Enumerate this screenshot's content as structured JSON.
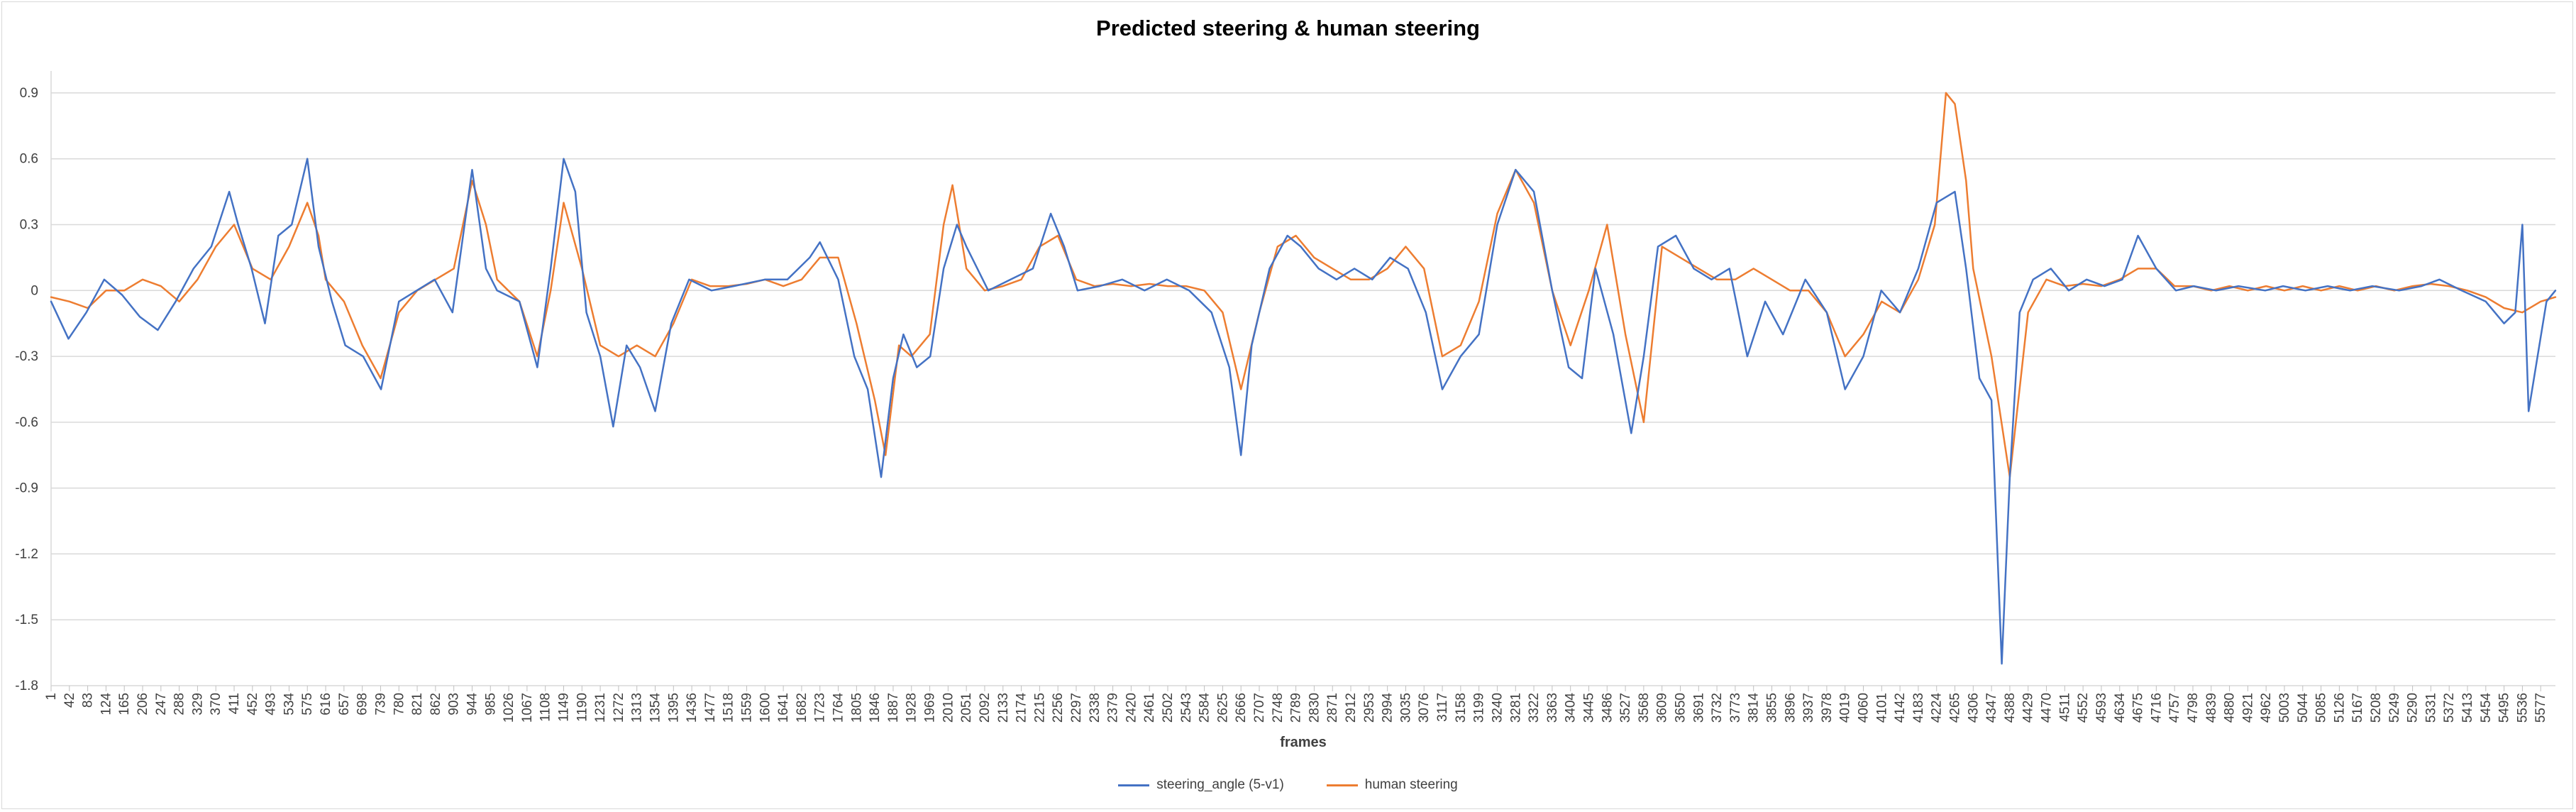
{
  "chart_data": {
    "type": "line",
    "title": "Predicted steering & human steering",
    "xlabel": "frames",
    "ylabel": "",
    "ylim": [
      -1.8,
      1.0
    ],
    "yticks": [
      -1.8,
      -1.5,
      -1.2,
      -0.9,
      -0.6,
      -0.3,
      0,
      0.3,
      0.6,
      0.9
    ],
    "xlim": [
      1,
      5610
    ],
    "xtick_start": 1,
    "xtick_step": 41,
    "grid": "horizontal",
    "legend_position": "bottom",
    "series": [
      {
        "name": "steering_angle (5-v1)",
        "color": "#4472C4",
        "points": [
          [
            1,
            -0.05
          ],
          [
            40,
            -0.22
          ],
          [
            80,
            -0.1
          ],
          [
            120,
            0.05
          ],
          [
            160,
            -0.02
          ],
          [
            200,
            -0.12
          ],
          [
            240,
            -0.18
          ],
          [
            280,
            -0.05
          ],
          [
            320,
            0.1
          ],
          [
            360,
            0.2
          ],
          [
            400,
            0.45
          ],
          [
            420,
            0.3
          ],
          [
            450,
            0.1
          ],
          [
            480,
            -0.15
          ],
          [
            510,
            0.25
          ],
          [
            540,
            0.3
          ],
          [
            575,
            0.6
          ],
          [
            600,
            0.2
          ],
          [
            630,
            -0.05
          ],
          [
            660,
            -0.25
          ],
          [
            700,
            -0.3
          ],
          [
            740,
            -0.45
          ],
          [
            780,
            -0.05
          ],
          [
            820,
            0.0
          ],
          [
            860,
            0.05
          ],
          [
            900,
            -0.1
          ],
          [
            944,
            0.55
          ],
          [
            975,
            0.1
          ],
          [
            1000,
            0.0
          ],
          [
            1050,
            -0.05
          ],
          [
            1090,
            -0.35
          ],
          [
            1120,
            0.1
          ],
          [
            1149,
            0.6
          ],
          [
            1175,
            0.45
          ],
          [
            1200,
            -0.1
          ],
          [
            1231,
            -0.3
          ],
          [
            1260,
            -0.62
          ],
          [
            1290,
            -0.25
          ],
          [
            1320,
            -0.35
          ],
          [
            1354,
            -0.55
          ],
          [
            1390,
            -0.15
          ],
          [
            1430,
            0.05
          ],
          [
            1480,
            0.0
          ],
          [
            1530,
            0.02
          ],
          [
            1600,
            0.05
          ],
          [
            1650,
            0.05
          ],
          [
            1700,
            0.15
          ],
          [
            1723,
            0.22
          ],
          [
            1764,
            0.05
          ],
          [
            1800,
            -0.3
          ],
          [
            1830,
            -0.45
          ],
          [
            1860,
            -0.85
          ],
          [
            1887,
            -0.4
          ],
          [
            1910,
            -0.2
          ],
          [
            1940,
            -0.35
          ],
          [
            1970,
            -0.3
          ],
          [
            2000,
            0.1
          ],
          [
            2030,
            0.3
          ],
          [
            2051,
            0.2
          ],
          [
            2100,
            0.0
          ],
          [
            2150,
            0.05
          ],
          [
            2200,
            0.1
          ],
          [
            2240,
            0.35
          ],
          [
            2270,
            0.2
          ],
          [
            2300,
            0.0
          ],
          [
            2350,
            0.02
          ],
          [
            2400,
            0.05
          ],
          [
            2450,
            0.0
          ],
          [
            2500,
            0.05
          ],
          [
            2550,
            0.0
          ],
          [
            2600,
            -0.1
          ],
          [
            2640,
            -0.35
          ],
          [
            2666,
            -0.75
          ],
          [
            2690,
            -0.25
          ],
          [
            2730,
            0.1
          ],
          [
            2770,
            0.25
          ],
          [
            2800,
            0.2
          ],
          [
            2840,
            0.1
          ],
          [
            2880,
            0.05
          ],
          [
            2920,
            0.1
          ],
          [
            2960,
            0.05
          ],
          [
            3000,
            0.15
          ],
          [
            3040,
            0.1
          ],
          [
            3080,
            -0.1
          ],
          [
            3117,
            -0.45
          ],
          [
            3158,
            -0.3
          ],
          [
            3199,
            -0.2
          ],
          [
            3240,
            0.3
          ],
          [
            3281,
            0.55
          ],
          [
            3322,
            0.45
          ],
          [
            3363,
            0.0
          ],
          [
            3400,
            -0.35
          ],
          [
            3430,
            -0.4
          ],
          [
            3460,
            0.1
          ],
          [
            3500,
            -0.2
          ],
          [
            3540,
            -0.65
          ],
          [
            3568,
            -0.3
          ],
          [
            3600,
            0.2
          ],
          [
            3640,
            0.25
          ],
          [
            3680,
            0.1
          ],
          [
            3720,
            0.05
          ],
          [
            3760,
            0.1
          ],
          [
            3800,
            -0.3
          ],
          [
            3840,
            -0.05
          ],
          [
            3880,
            -0.2
          ],
          [
            3930,
            0.05
          ],
          [
            3978,
            -0.1
          ],
          [
            4019,
            -0.45
          ],
          [
            4060,
            -0.3
          ],
          [
            4100,
            0.0
          ],
          [
            4142,
            -0.1
          ],
          [
            4183,
            0.1
          ],
          [
            4224,
            0.4
          ],
          [
            4265,
            0.45
          ],
          [
            4290,
            0.1
          ],
          [
            4320,
            -0.4
          ],
          [
            4347,
            -0.5
          ],
          [
            4370,
            -1.7
          ],
          [
            4388,
            -0.85
          ],
          [
            4410,
            -0.1
          ],
          [
            4440,
            0.05
          ],
          [
            4480,
            0.1
          ],
          [
            4520,
            0.0
          ],
          [
            4560,
            0.05
          ],
          [
            4600,
            0.02
          ],
          [
            4640,
            0.05
          ],
          [
            4675,
            0.25
          ],
          [
            4716,
            0.1
          ],
          [
            4760,
            0.0
          ],
          [
            4800,
            0.02
          ],
          [
            4850,
            0.0
          ],
          [
            4900,
            0.02
          ],
          [
            4960,
            0.0
          ],
          [
            5000,
            0.02
          ],
          [
            5050,
            0.0
          ],
          [
            5100,
            0.02
          ],
          [
            5150,
            0.0
          ],
          [
            5200,
            0.02
          ],
          [
            5260,
            0.0
          ],
          [
            5310,
            0.02
          ],
          [
            5350,
            0.05
          ],
          [
            5400,
            0.0
          ],
          [
            5454,
            -0.05
          ],
          [
            5495,
            -0.15
          ],
          [
            5520,
            -0.1
          ],
          [
            5536,
            0.3
          ],
          [
            5550,
            -0.55
          ],
          [
            5570,
            -0.3
          ],
          [
            5590,
            -0.05
          ],
          [
            5610,
            0.0
          ]
        ]
      },
      {
        "name": "human steering",
        "color": "#ED7D31",
        "points": [
          [
            1,
            -0.03
          ],
          [
            42,
            -0.05
          ],
          [
            83,
            -0.08
          ],
          [
            124,
            0.0
          ],
          [
            165,
            0.0
          ],
          [
            206,
            0.05
          ],
          [
            247,
            0.02
          ],
          [
            288,
            -0.05
          ],
          [
            329,
            0.05
          ],
          [
            370,
            0.2
          ],
          [
            411,
            0.3
          ],
          [
            452,
            0.1
          ],
          [
            493,
            0.05
          ],
          [
            534,
            0.2
          ],
          [
            575,
            0.4
          ],
          [
            600,
            0.25
          ],
          [
            616,
            0.05
          ],
          [
            657,
            -0.05
          ],
          [
            698,
            -0.25
          ],
          [
            739,
            -0.4
          ],
          [
            780,
            -0.1
          ],
          [
            821,
            0.0
          ],
          [
            862,
            0.05
          ],
          [
            903,
            0.1
          ],
          [
            944,
            0.5
          ],
          [
            975,
            0.3
          ],
          [
            1000,
            0.05
          ],
          [
            1050,
            -0.05
          ],
          [
            1090,
            -0.3
          ],
          [
            1120,
            0.0
          ],
          [
            1149,
            0.4
          ],
          [
            1190,
            0.1
          ],
          [
            1231,
            -0.25
          ],
          [
            1272,
            -0.3
          ],
          [
            1313,
            -0.25
          ],
          [
            1354,
            -0.3
          ],
          [
            1395,
            -0.15
          ],
          [
            1436,
            0.05
          ],
          [
            1477,
            0.02
          ],
          [
            1518,
            0.02
          ],
          [
            1559,
            0.03
          ],
          [
            1600,
            0.05
          ],
          [
            1641,
            0.02
          ],
          [
            1682,
            0.05
          ],
          [
            1723,
            0.15
          ],
          [
            1764,
            0.15
          ],
          [
            1805,
            -0.15
          ],
          [
            1846,
            -0.5
          ],
          [
            1870,
            -0.75
          ],
          [
            1900,
            -0.25
          ],
          [
            1928,
            -0.3
          ],
          [
            1969,
            -0.2
          ],
          [
            2000,
            0.3
          ],
          [
            2020,
            0.48
          ],
          [
            2051,
            0.1
          ],
          [
            2092,
            0.0
          ],
          [
            2133,
            0.02
          ],
          [
            2174,
            0.05
          ],
          [
            2215,
            0.2
          ],
          [
            2256,
            0.25
          ],
          [
            2297,
            0.05
          ],
          [
            2338,
            0.02
          ],
          [
            2379,
            0.03
          ],
          [
            2420,
            0.02
          ],
          [
            2461,
            0.03
          ],
          [
            2502,
            0.02
          ],
          [
            2543,
            0.02
          ],
          [
            2584,
            0.0
          ],
          [
            2625,
            -0.1
          ],
          [
            2666,
            -0.45
          ],
          [
            2707,
            -0.1
          ],
          [
            2748,
            0.2
          ],
          [
            2789,
            0.25
          ],
          [
            2830,
            0.15
          ],
          [
            2871,
            0.1
          ],
          [
            2912,
            0.05
          ],
          [
            2953,
            0.05
          ],
          [
            2994,
            0.1
          ],
          [
            3035,
            0.2
          ],
          [
            3076,
            0.1
          ],
          [
            3117,
            -0.3
          ],
          [
            3158,
            -0.25
          ],
          [
            3199,
            -0.05
          ],
          [
            3240,
            0.35
          ],
          [
            3281,
            0.55
          ],
          [
            3322,
            0.4
          ],
          [
            3363,
            0.0
          ],
          [
            3404,
            -0.25
          ],
          [
            3445,
            0.0
          ],
          [
            3486,
            0.3
          ],
          [
            3527,
            -0.2
          ],
          [
            3568,
            -0.6
          ],
          [
            3609,
            0.2
          ],
          [
            3650,
            0.15
          ],
          [
            3691,
            0.1
          ],
          [
            3732,
            0.05
          ],
          [
            3773,
            0.05
          ],
          [
            3814,
            0.1
          ],
          [
            3855,
            0.05
          ],
          [
            3896,
            0.0
          ],
          [
            3937,
            0.0
          ],
          [
            3978,
            -0.1
          ],
          [
            4019,
            -0.3
          ],
          [
            4060,
            -0.2
          ],
          [
            4101,
            -0.05
          ],
          [
            4142,
            -0.1
          ],
          [
            4183,
            0.05
          ],
          [
            4220,
            0.3
          ],
          [
            4245,
            0.9
          ],
          [
            4265,
            0.85
          ],
          [
            4290,
            0.5
          ],
          [
            4306,
            0.1
          ],
          [
            4347,
            -0.3
          ],
          [
            4388,
            -0.85
          ],
          [
            4429,
            -0.1
          ],
          [
            4470,
            0.05
          ],
          [
            4511,
            0.02
          ],
          [
            4552,
            0.03
          ],
          [
            4593,
            0.02
          ],
          [
            4634,
            0.05
          ],
          [
            4675,
            0.1
          ],
          [
            4716,
            0.1
          ],
          [
            4757,
            0.02
          ],
          [
            4798,
            0.02
          ],
          [
            4839,
            0.0
          ],
          [
            4880,
            0.02
          ],
          [
            4921,
            0.0
          ],
          [
            4962,
            0.02
          ],
          [
            5003,
            0.0
          ],
          [
            5044,
            0.02
          ],
          [
            5085,
            0.0
          ],
          [
            5126,
            0.02
          ],
          [
            5167,
            0.0
          ],
          [
            5208,
            0.02
          ],
          [
            5249,
            0.0
          ],
          [
            5290,
            0.02
          ],
          [
            5331,
            0.03
          ],
          [
            5372,
            0.02
          ],
          [
            5413,
            0.0
          ],
          [
            5454,
            -0.03
          ],
          [
            5495,
            -0.08
          ],
          [
            5536,
            -0.1
          ],
          [
            5577,
            -0.05
          ],
          [
            5610,
            -0.03
          ]
        ]
      }
    ]
  }
}
